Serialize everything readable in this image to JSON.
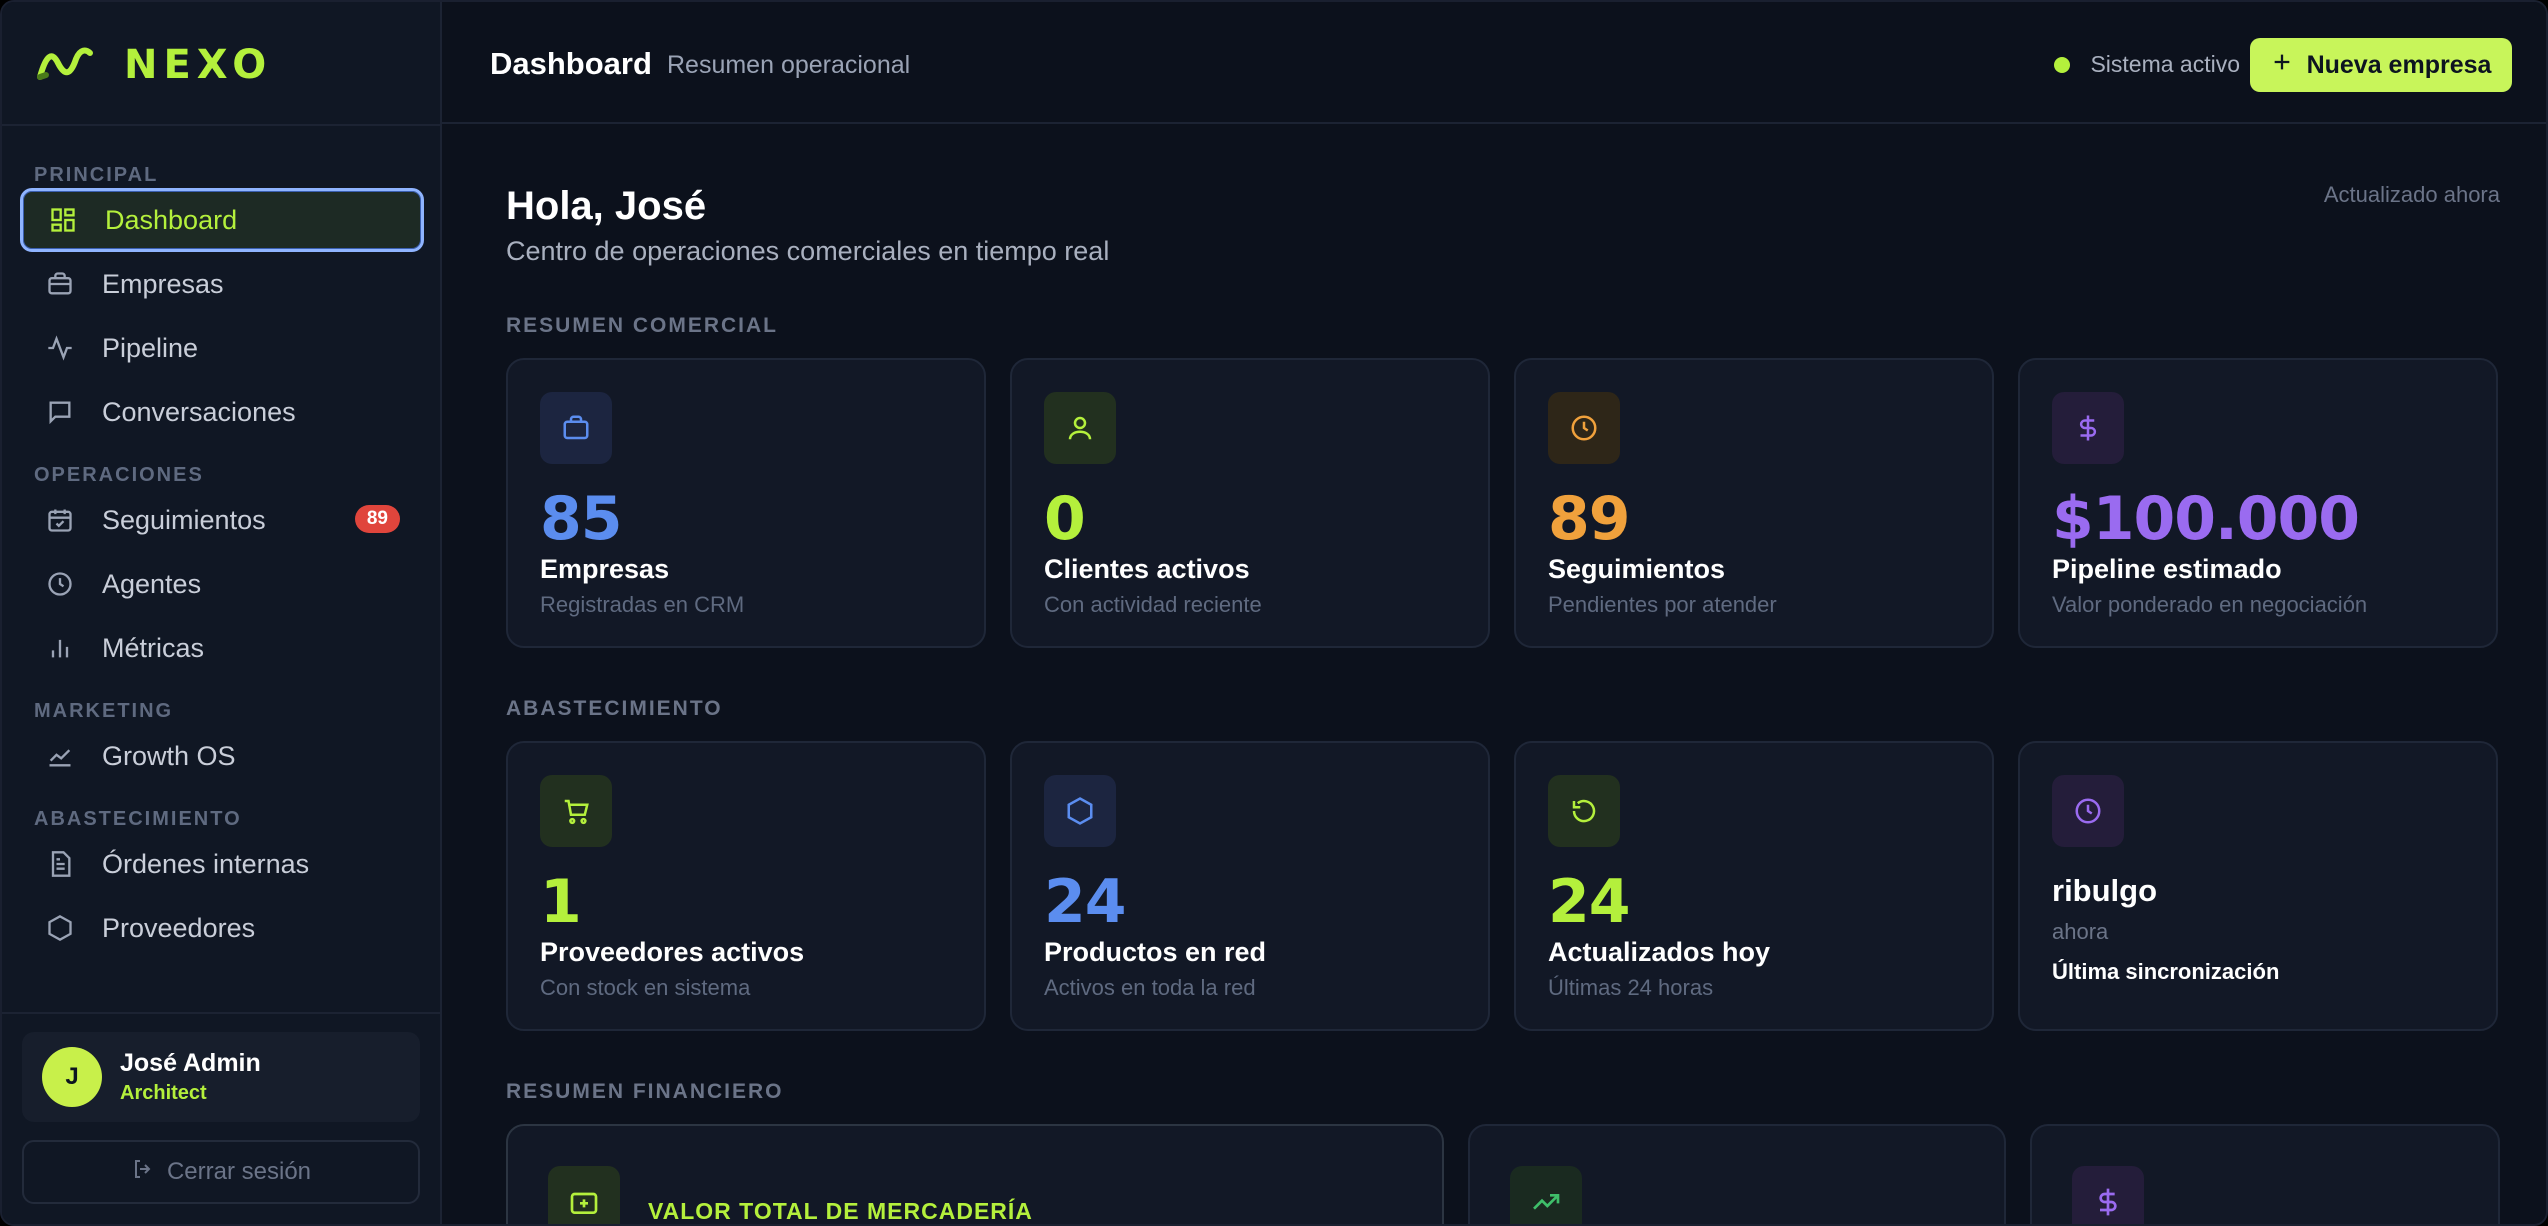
{
  "brand": {
    "name": "NEXO",
    "color": "#b4f03c"
  },
  "sidebar": {
    "sections": {
      "principal": "PRINCIPAL",
      "operaciones": "OPERACIONES",
      "marketing": "MARKETING",
      "abastecimiento": "ABASTECIMIENTO"
    },
    "items": [
      {
        "label": "Dashboard",
        "icon": "grid-icon",
        "active": true
      },
      {
        "label": "Empresas",
        "icon": "briefcase-icon"
      },
      {
        "label": "Pipeline",
        "icon": "activity-icon"
      },
      {
        "label": "Conversaciones",
        "icon": "chat-icon"
      },
      {
        "label": "Seguimientos",
        "icon": "calendar-check-icon",
        "badge": "89"
      },
      {
        "label": "Agentes",
        "icon": "clock-icon"
      },
      {
        "label": "Métricas",
        "icon": "bar-chart-icon"
      },
      {
        "label": "Growth OS",
        "icon": "trend-icon"
      },
      {
        "label": "Órdenes internas",
        "icon": "document-icon"
      },
      {
        "label": "Proveedores",
        "icon": "box-icon"
      }
    ],
    "user": {
      "initial": "J",
      "name": "José Admin",
      "role": "Architect"
    },
    "logout": "Cerrar sesión"
  },
  "topbar": {
    "title": "Dashboard",
    "subtitle": "Resumen operacional",
    "status": "Sistema activo",
    "new_button": "Nueva empresa"
  },
  "main": {
    "greeting": "Hola, José",
    "greeting_sub": "Centro de operaciones comerciales en tiempo real",
    "updated": "Actualizado ahora",
    "sections": {
      "comercial": "RESUMEN COMERCIAL",
      "abastecimiento": "ABASTECIMIENTO",
      "financiero": "RESUMEN FINANCIERO"
    },
    "comercial_cards": [
      {
        "value": "85",
        "label": "Empresas",
        "desc": "Registradas en CRM",
        "color": "#5b8def",
        "icon": "briefcase-icon"
      },
      {
        "value": "0",
        "label": "Clientes activos",
        "desc": "Con actividad reciente",
        "color": "#b4f03c",
        "icon": "user-icon"
      },
      {
        "value": "89",
        "label": "Seguimientos",
        "desc": "Pendientes por atender",
        "color": "#f0a13c",
        "icon": "clock-icon"
      },
      {
        "value": "$100.000",
        "label": "Pipeline estimado",
        "desc": "Valor ponderado en negociación",
        "color": "#9a6bf0",
        "icon": "dollar-icon"
      }
    ],
    "abastecimiento_cards": [
      {
        "value": "1",
        "label": "Proveedores activos",
        "desc": "Con stock en sistema",
        "color": "#b4f03c",
        "icon": "cart-icon"
      },
      {
        "value": "24",
        "label": "Productos en red",
        "desc": "Activos en toda la red",
        "color": "#5b8def",
        "icon": "hexagon-icon"
      },
      {
        "value": "24",
        "label": "Actualizados hoy",
        "desc": "Últimas 24 horas",
        "color": "#b4f03c",
        "icon": "refresh-icon"
      }
    ],
    "sync_card": {
      "name": "ribulgo",
      "time": "ahora",
      "label": "Última sincronización",
      "color": "#9a6bf0",
      "icon": "clock-icon"
    },
    "financial": {
      "title": "VALOR TOTAL DE MERCADERÍA"
    }
  }
}
